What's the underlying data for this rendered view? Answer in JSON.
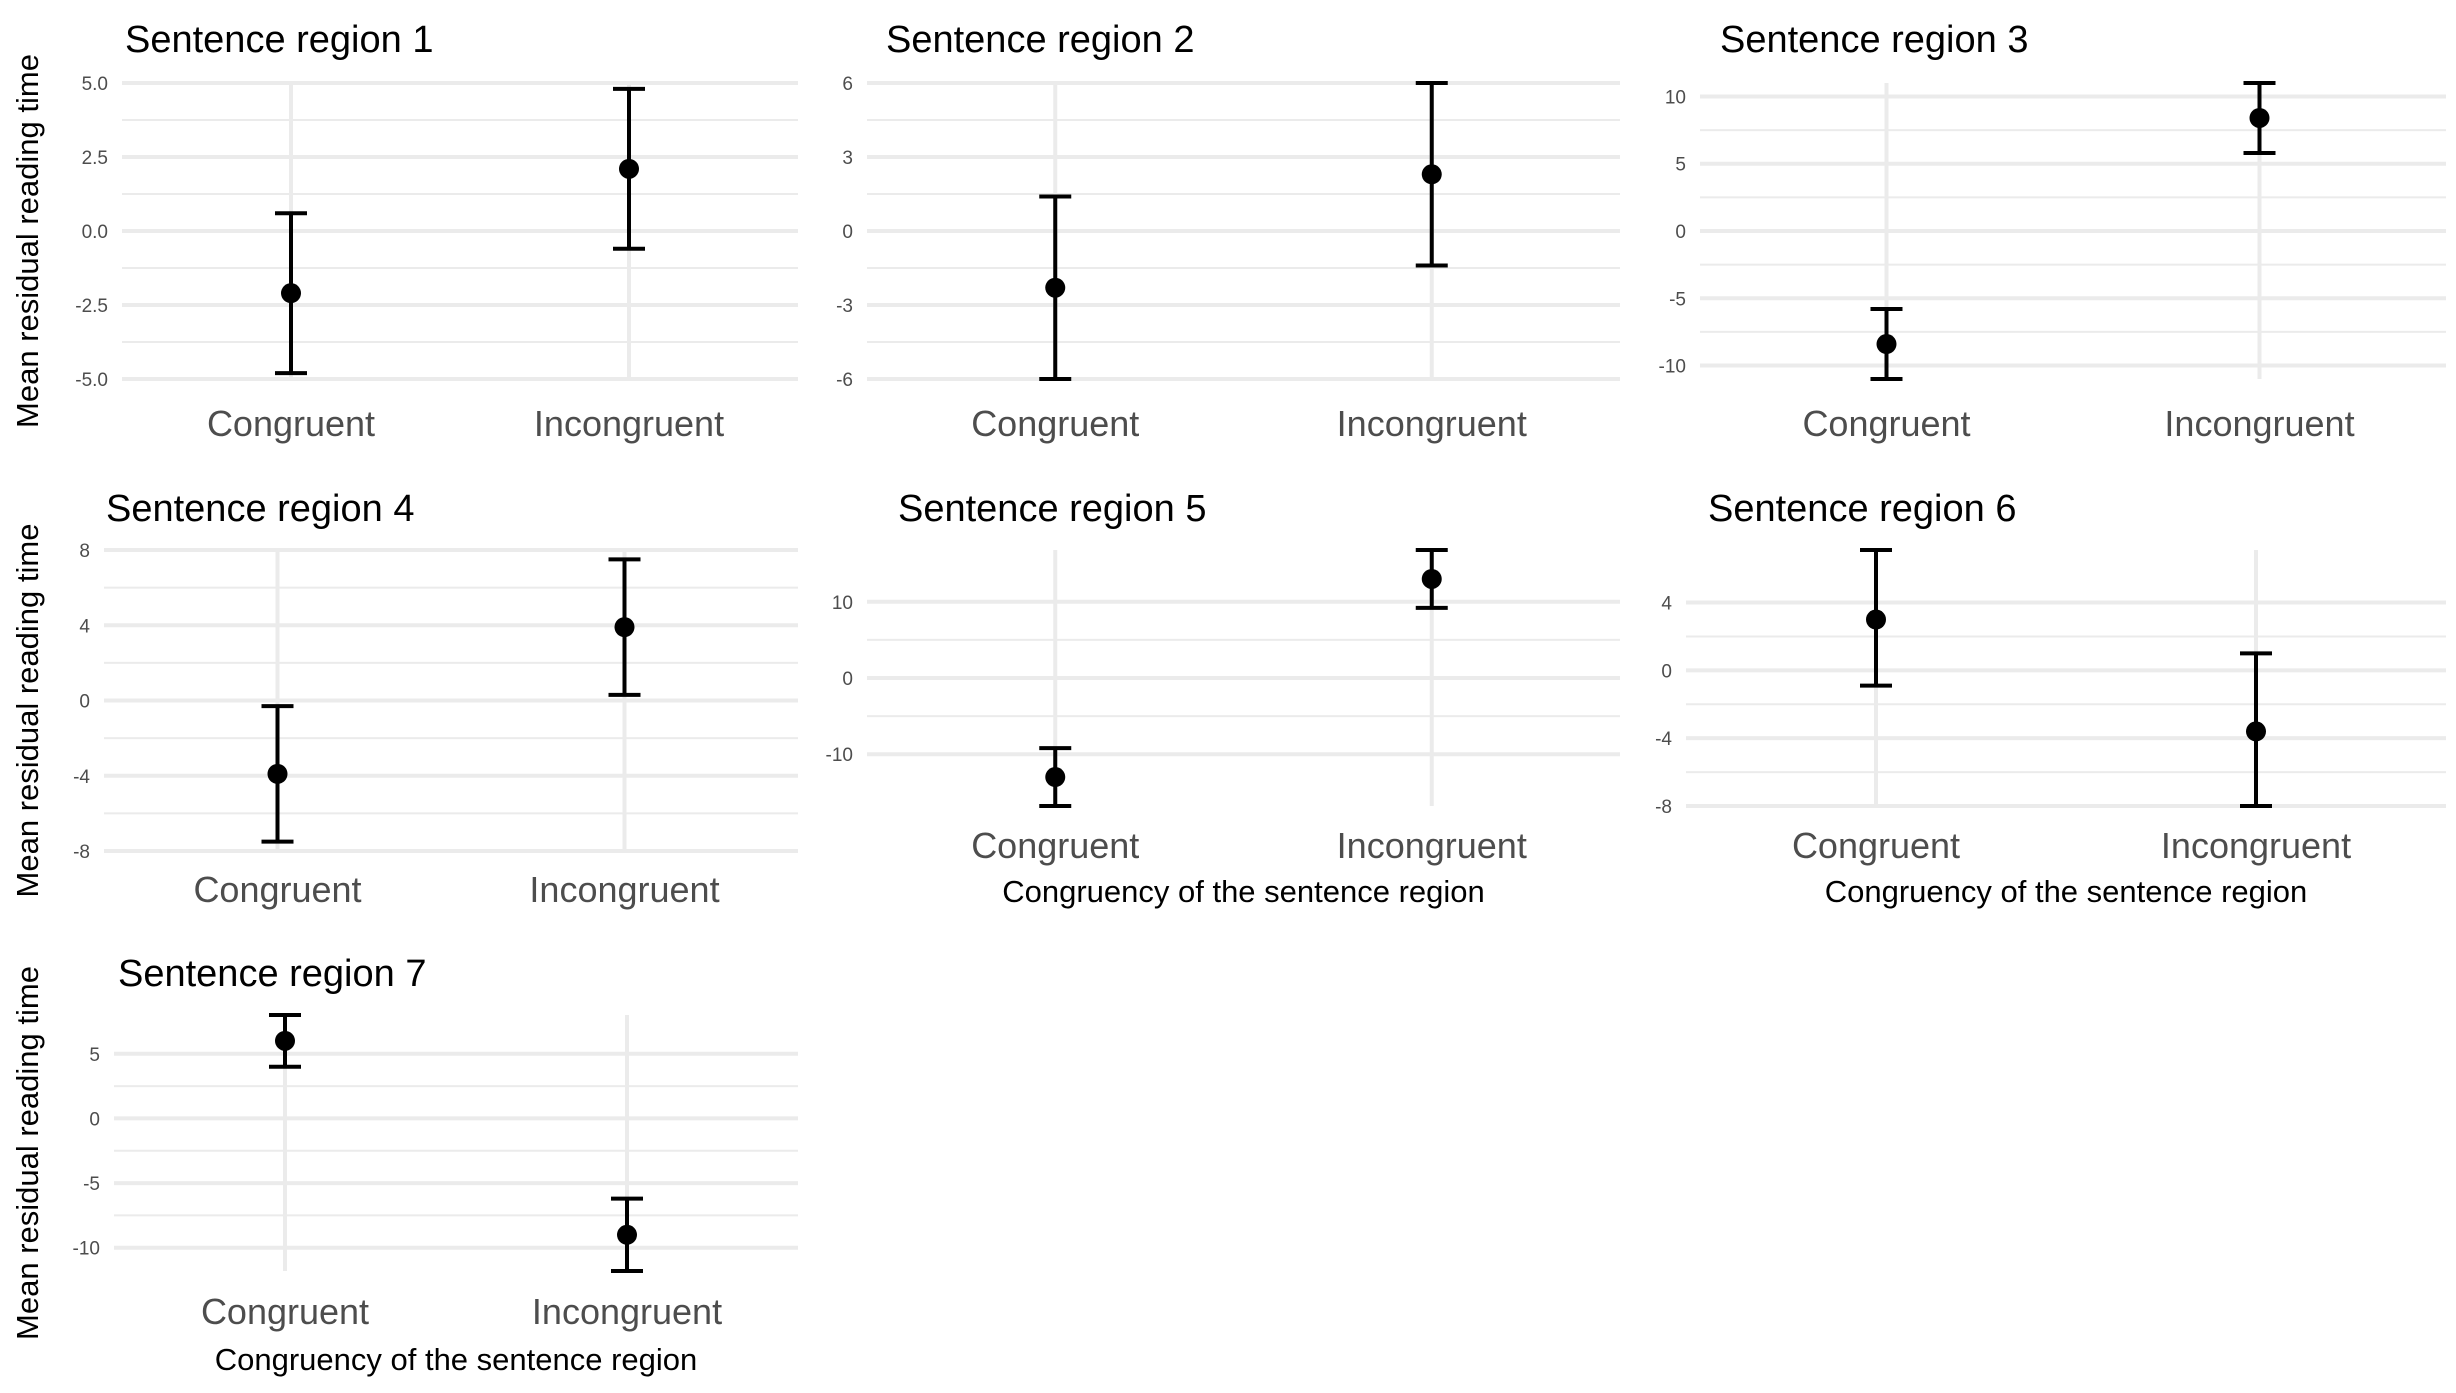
{
  "chart_data": [
    {
      "type": "errorbar",
      "title": "Sentence region 1",
      "ylabel": "Mean residual reading time",
      "xlabel": "",
      "categories": [
        "Congruent",
        "Incongruent"
      ],
      "values": [
        -2.1,
        2.1
      ],
      "lower": [
        -4.8,
        -0.6
      ],
      "upper": [
        0.6,
        4.8
      ],
      "ylim": [
        -5.0,
        5.0
      ],
      "yticks": [
        -5.0,
        -2.5,
        0.0,
        2.5,
        5.0
      ],
      "ytick_labels": [
        "-5.0",
        "-2.5",
        "0.0",
        "2.5",
        "5.0"
      ],
      "grid": true
    },
    {
      "type": "errorbar",
      "title": "Sentence region 2",
      "ylabel": "",
      "xlabel": "",
      "categories": [
        "Congruent",
        "Incongruent"
      ],
      "values": [
        -2.3,
        2.3
      ],
      "lower": [
        -6.0,
        -1.4
      ],
      "upper": [
        1.4,
        6.0
      ],
      "ylim": [
        -6,
        6
      ],
      "yticks": [
        -6,
        -3,
        0,
        3,
        6
      ],
      "ytick_labels": [
        "-6",
        "-3",
        "0",
        "3",
        "6"
      ],
      "grid": true
    },
    {
      "type": "errorbar",
      "title": "Sentence region 3",
      "ylabel": "",
      "xlabel": "",
      "categories": [
        "Congruent",
        "Incongruent"
      ],
      "values": [
        -8.4,
        8.4
      ],
      "lower": [
        -11.0,
        5.8
      ],
      "upper": [
        -5.8,
        11.0
      ],
      "ylim": [
        -11,
        11
      ],
      "yticks": [
        -10,
        -5,
        0,
        5,
        10
      ],
      "ytick_labels": [
        "-10",
        "-5",
        "0",
        "5",
        "10"
      ],
      "grid": true
    },
    {
      "type": "errorbar",
      "title": "Sentence region 4",
      "ylabel": "Mean residual reading time",
      "xlabel": "",
      "categories": [
        "Congruent",
        "Incongruent"
      ],
      "values": [
        -3.9,
        3.9
      ],
      "lower": [
        -7.5,
        0.3
      ],
      "upper": [
        -0.3,
        7.5
      ],
      "ylim": [
        -8,
        8
      ],
      "yticks": [
        -8,
        -4,
        0,
        4,
        8
      ],
      "ytick_labels": [
        "-8",
        "-4",
        "0",
        "4",
        "8"
      ],
      "grid": true
    },
    {
      "type": "errorbar",
      "title": "Sentence region 5",
      "ylabel": "",
      "xlabel": "Congruency of the sentence region",
      "categories": [
        "Congruent",
        "Incongruent"
      ],
      "values": [
        -13.0,
        13.0
      ],
      "lower": [
        -16.8,
        9.2
      ],
      "upper": [
        -9.2,
        16.8
      ],
      "ylim": [
        -16.8,
        16.8
      ],
      "yticks": [
        -10,
        0,
        10
      ],
      "ytick_labels": [
        "-10",
        "0",
        "10"
      ],
      "grid": true
    },
    {
      "type": "errorbar",
      "title": "Sentence region 6",
      "ylabel": "",
      "xlabel": "Congruency of the sentence region",
      "categories": [
        "Congruent",
        "Incongruent"
      ],
      "values": [
        3.0,
        -3.6
      ],
      "lower": [
        -0.9,
        -8.0
      ],
      "upper": [
        7.1,
        1.0
      ],
      "ylim": [
        -8,
        7.1
      ],
      "yticks": [
        -8,
        -4,
        0,
        4
      ],
      "ytick_labels": [
        "-8",
        "-4",
        "0",
        "4"
      ],
      "grid": true
    },
    {
      "type": "errorbar",
      "title": "Sentence region 7",
      "ylabel": "Mean residual reading time",
      "xlabel": "Congruency of the sentence region",
      "categories": [
        "Congruent",
        "Incongruent"
      ],
      "values": [
        6.0,
        -9.0
      ],
      "lower": [
        4.0,
        -11.8
      ],
      "upper": [
        8.0,
        -6.2
      ],
      "ylim": [
        -11.8,
        8.0
      ],
      "yticks": [
        -10,
        -5,
        0,
        5
      ],
      "ytick_labels": [
        "-10",
        "-5",
        "0",
        "5"
      ],
      "grid": true
    }
  ]
}
